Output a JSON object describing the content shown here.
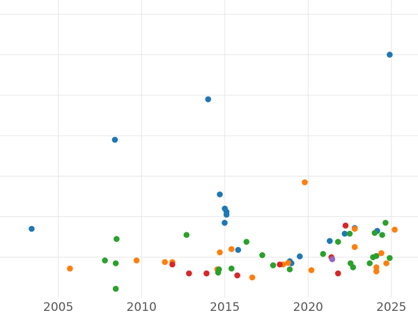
{
  "chart_data": {
    "type": "scatter",
    "title": "",
    "xlabel": "",
    "ylabel": "",
    "xlim": [
      2001.5,
      2026.6
    ],
    "ylim": [
      0,
      7.35
    ],
    "x_ticks": [
      2005,
      2010,
      2015,
      2020,
      2025
    ],
    "x_tick_labels": [
      "2005",
      "2010",
      "2015",
      "2020",
      "2025"
    ],
    "y_gridlines": [
      1,
      2,
      3,
      4,
      5,
      6,
      7
    ],
    "grid": true,
    "legend": "none",
    "series": [
      {
        "color": "#1f77b4",
        "points": [
          [
            2003.4,
            1.7
          ],
          [
            2008.4,
            3.9
          ],
          [
            2014.0,
            4.9
          ],
          [
            2014.7,
            2.55
          ],
          [
            2015.0,
            2.2
          ],
          [
            2015.1,
            2.12
          ],
          [
            2015.1,
            2.05
          ],
          [
            2014.99,
            1.85
          ],
          [
            2015.8,
            1.18
          ],
          [
            2019.5,
            1.02
          ],
          [
            2019.0,
            0.85
          ],
          [
            2018.9,
            0.9
          ],
          [
            2021.3,
            1.4
          ],
          [
            2022.2,
            1.58
          ],
          [
            2022.8,
            1.72
          ],
          [
            2024.15,
            1.65
          ],
          [
            2024.9,
            6.0
          ]
        ]
      },
      {
        "color": "#ff7f0e",
        "points": [
          [
            2005.7,
            0.72
          ],
          [
            2009.7,
            0.92
          ],
          [
            2011.4,
            0.88
          ],
          [
            2011.85,
            0.88
          ],
          [
            2014.55,
            0.7
          ],
          [
            2014.7,
            1.12
          ],
          [
            2015.4,
            1.2
          ],
          [
            2016.65,
            0.5
          ],
          [
            2018.5,
            0.82
          ],
          [
            2018.8,
            0.86
          ],
          [
            2019.8,
            2.85
          ],
          [
            2020.2,
            0.68
          ],
          [
            2022.8,
            1.25
          ],
          [
            2022.8,
            1.7
          ],
          [
            2024.1,
            0.75
          ],
          [
            2024.1,
            0.65
          ],
          [
            2024.4,
            1.1
          ],
          [
            2024.7,
            0.85
          ],
          [
            2025.2,
            1.68
          ]
        ]
      },
      {
        "color": "#2ca02c",
        "points": [
          [
            2007.8,
            0.92
          ],
          [
            2008.45,
            0.85
          ],
          [
            2008.45,
            0.22
          ],
          [
            2008.5,
            1.45
          ],
          [
            2012.7,
            1.55
          ],
          [
            2014.6,
            0.62
          ],
          [
            2014.65,
            0.7
          ],
          [
            2015.4,
            0.72
          ],
          [
            2016.3,
            1.38
          ],
          [
            2017.25,
            1.05
          ],
          [
            2017.9,
            0.8
          ],
          [
            2018.9,
            0.7
          ],
          [
            2020.9,
            1.08
          ],
          [
            2021.8,
            1.38
          ],
          [
            2022.5,
            1.58
          ],
          [
            2022.55,
            0.85
          ],
          [
            2022.7,
            0.75
          ],
          [
            2023.7,
            0.85
          ],
          [
            2023.9,
            1.0
          ],
          [
            2024.0,
            1.6
          ],
          [
            2024.1,
            1.03
          ],
          [
            2024.45,
            1.55
          ],
          [
            2024.65,
            1.85
          ],
          [
            2024.9,
            0.98
          ]
        ]
      },
      {
        "color": "#d62728",
        "points": [
          [
            2011.85,
            0.82
          ],
          [
            2012.85,
            0.6
          ],
          [
            2013.9,
            0.6
          ],
          [
            2015.75,
            0.55
          ],
          [
            2018.3,
            0.82
          ],
          [
            2021.4,
            1.0
          ],
          [
            2021.8,
            0.6
          ],
          [
            2022.25,
            1.78
          ]
        ]
      },
      {
        "color": "#9467bd",
        "points": [
          [
            2021.45,
            0.95
          ]
        ]
      }
    ]
  }
}
